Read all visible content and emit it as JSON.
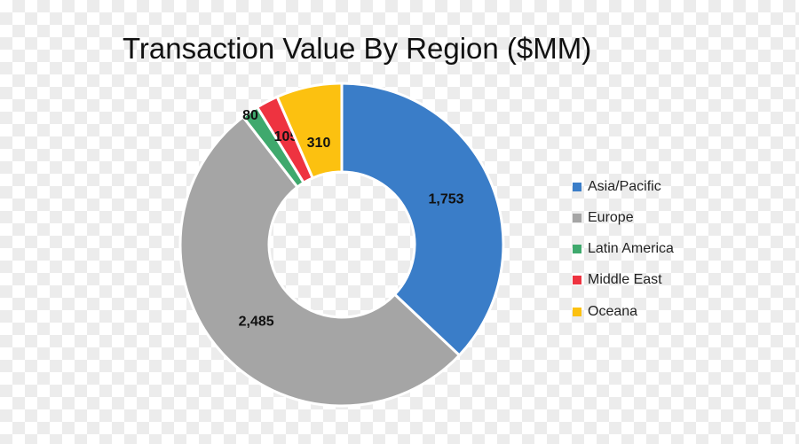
{
  "chart_data": {
    "type": "pie",
    "subtype": "donut",
    "title": "Transaction Value By Region ($MM)",
    "categories": [
      "Asia/Pacific",
      "Europe",
      "Latin America",
      "Middle East",
      "Oceana"
    ],
    "values": [
      1753,
      2485,
      80,
      105,
      310
    ],
    "value_labels": [
      "1,753",
      "2,485",
      "80",
      "105",
      "310"
    ],
    "colors": [
      "#3a7dc8",
      "#a5a5a5",
      "#3fa96d",
      "#ee3340",
      "#fcc110"
    ],
    "legend_position": "right"
  }
}
